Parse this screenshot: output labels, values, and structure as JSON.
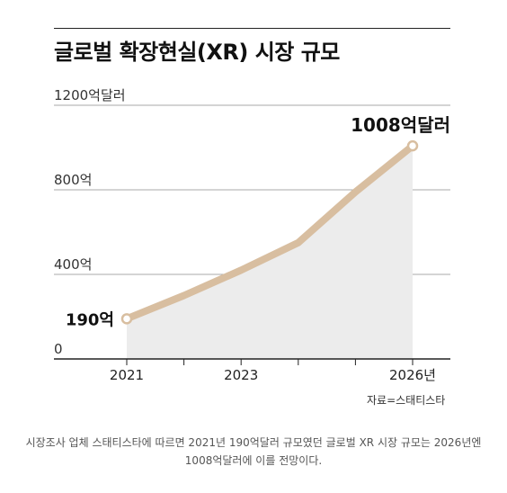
{
  "header": {
    "title": "글로벌 확장현실(XR) 시장 규모"
  },
  "chart_data": {
    "type": "line",
    "title": "글로벌 확장현실(XR) 시장 규모",
    "xlabel": "",
    "ylabel": "",
    "x": [
      2021,
      2022,
      2023,
      2024,
      2025,
      2026
    ],
    "series": [
      {
        "values": [
          190,
          300,
          420,
          550,
          790,
          1008
        ]
      }
    ],
    "xlim": [
      2020.5,
      2026.5
    ],
    "ylim": [
      0,
      1200
    ],
    "x_ticks": [
      2021,
      2022,
      2023,
      2024,
      2025,
      2026
    ],
    "x_tick_labels": [
      {
        "x": 2021,
        "text": "2021"
      },
      {
        "x": 2023,
        "text": "2023"
      },
      {
        "x": 2026,
        "text": "2026년"
      }
    ],
    "y_tick_labels": [
      {
        "y": 0,
        "text": "0"
      },
      {
        "y": 400,
        "text": "400억"
      },
      {
        "y": 800,
        "text": "800억"
      },
      {
        "y": 1200,
        "text": "1200억달러"
      }
    ],
    "annotations": [
      {
        "x": 2021,
        "y": 190,
        "text": "190억"
      },
      {
        "x": 2026,
        "y": 1008,
        "text": "1008억달러"
      }
    ],
    "grid": true,
    "legend": "none",
    "colors": {
      "line": "#d8bea0",
      "area": "#ececec",
      "grid": "#aaaaaa",
      "axis": "#222222"
    }
  },
  "source": "자료=스태티스타",
  "caption": [
    "시장조사 업체 스태티스타에 따르면 2021년 190억달러 규모였던 글로벌 XR 시장 규모는 2026년엔",
    "1008억달러에 이를 전망이다."
  ]
}
